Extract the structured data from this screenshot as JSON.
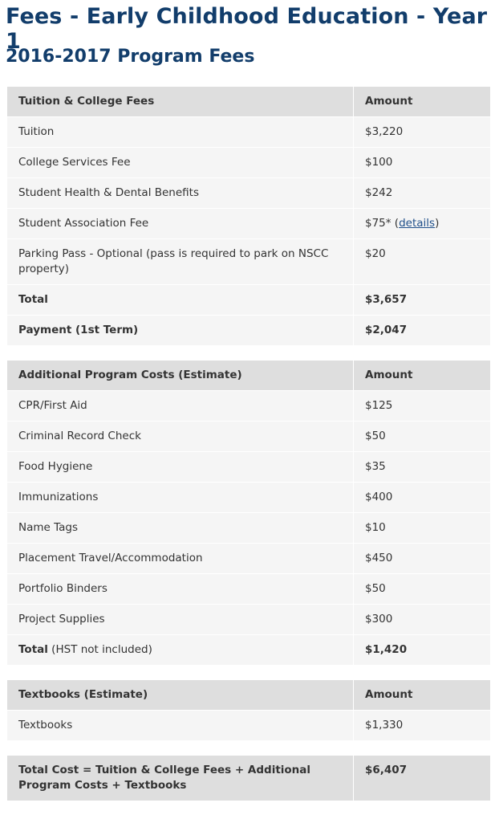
{
  "header": {
    "title": "Fees - Early Childhood Education - Year 1",
    "subtitle": "2016-2017 Program Fees"
  },
  "tables": [
    {
      "columns": [
        "Tuition & College Fees",
        "Amount"
      ],
      "rows": [
        {
          "cells": [
            "Tuition",
            "$3,220"
          ]
        },
        {
          "cells": [
            "College Services Fee",
            "$100"
          ]
        },
        {
          "cells": [
            "Student Health & Dental Benefits",
            "$242"
          ]
        },
        {
          "cells": [
            "Student Association Fee",
            [
              {
                "text": "$75* ("
              },
              {
                "text": "details",
                "link": true
              },
              {
                "text": ")"
              }
            ]
          ]
        },
        {
          "cells": [
            "Parking Pass - Optional (pass is required to park on NSCC property)",
            "$20"
          ]
        },
        {
          "cells": [
            "Total",
            "$3,657"
          ],
          "bold": true
        },
        {
          "cells": [
            "Payment (1st Term)",
            "$2,047"
          ],
          "bold": true
        }
      ]
    },
    {
      "columns": [
        "Additional Program Costs (Estimate)",
        "Amount"
      ],
      "rows": [
        {
          "cells": [
            "CPR/First Aid",
            "$125"
          ]
        },
        {
          "cells": [
            "Criminal Record Check",
            "$50"
          ]
        },
        {
          "cells": [
            "Food Hygiene",
            "$35"
          ]
        },
        {
          "cells": [
            "Immunizations",
            "$400"
          ]
        },
        {
          "cells": [
            "Name Tags",
            "$10"
          ]
        },
        {
          "cells": [
            "Placement Travel/Accommodation",
            "$450"
          ]
        },
        {
          "cells": [
            "Portfolio Binders",
            "$50"
          ]
        },
        {
          "cells": [
            "Project Supplies",
            "$300"
          ]
        },
        {
          "cells": [
            [
              {
                "text": "Total",
                "bold": true
              },
              {
                "text": " (HST not included)"
              }
            ],
            [
              {
                "text": "$1,420",
                "bold": true
              }
            ]
          ]
        }
      ]
    },
    {
      "columns": [
        "Textbooks (Estimate)",
        "Amount"
      ],
      "rows": [
        {
          "cells": [
            "Textbooks",
            "$1,330"
          ]
        }
      ]
    },
    {
      "columns": [
        "Total Cost = Tuition & College Fees + Additional Program Costs + Textbooks",
        "$6,407"
      ],
      "rows": []
    }
  ]
}
